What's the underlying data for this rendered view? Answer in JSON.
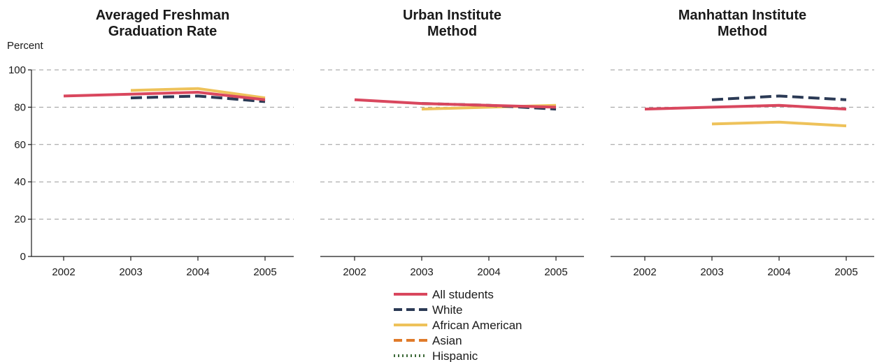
{
  "chart_data": {
    "type": "line",
    "ylabel": "Percent",
    "ylim": [
      0,
      100
    ],
    "yticks": [
      0,
      20,
      40,
      60,
      80,
      100
    ],
    "grid": true,
    "legend_placement": "bottom-center",
    "categories": [
      "2002",
      "2003",
      "2004",
      "2005"
    ],
    "series_styles": [
      {
        "name": "All students",
        "color": "#d9475e",
        "dash": "solid"
      },
      {
        "name": "White",
        "color": "#2b3a55",
        "dash": "dashed"
      },
      {
        "name": "African American",
        "color": "#eec25a",
        "dash": "solid"
      },
      {
        "name": "Asian",
        "color": "#e07b2a",
        "dash": "dashed"
      },
      {
        "name": "Hispanic",
        "color": "#3f6b3a",
        "dash": "dotted"
      }
    ],
    "panels": [
      {
        "title_lines": [
          "Averaged Freshman",
          "Graduation Rate"
        ],
        "series": [
          {
            "name": "All students",
            "values": [
              86,
              87,
              88,
              84
            ]
          },
          {
            "name": "White",
            "values": [
              null,
              85,
              86,
              83
            ]
          },
          {
            "name": "African American",
            "values": [
              null,
              89,
              90,
              85
            ]
          }
        ]
      },
      {
        "title_lines": [
          "Urban Institute",
          "Method"
        ],
        "series": [
          {
            "name": "All students",
            "values": [
              84,
              82,
              81,
              80
            ]
          },
          {
            "name": "White",
            "values": [
              null,
              82,
              81,
              79
            ]
          },
          {
            "name": "African American",
            "values": [
              null,
              79,
              80,
              81
            ]
          }
        ]
      },
      {
        "title_lines": [
          "Manhattan Institute",
          "Method"
        ],
        "series": [
          {
            "name": "All students",
            "values": [
              79,
              80,
              81,
              79
            ]
          },
          {
            "name": "White",
            "values": [
              null,
              84,
              86,
              84
            ]
          },
          {
            "name": "African American",
            "values": [
              null,
              71,
              72,
              70
            ]
          }
        ]
      }
    ]
  }
}
